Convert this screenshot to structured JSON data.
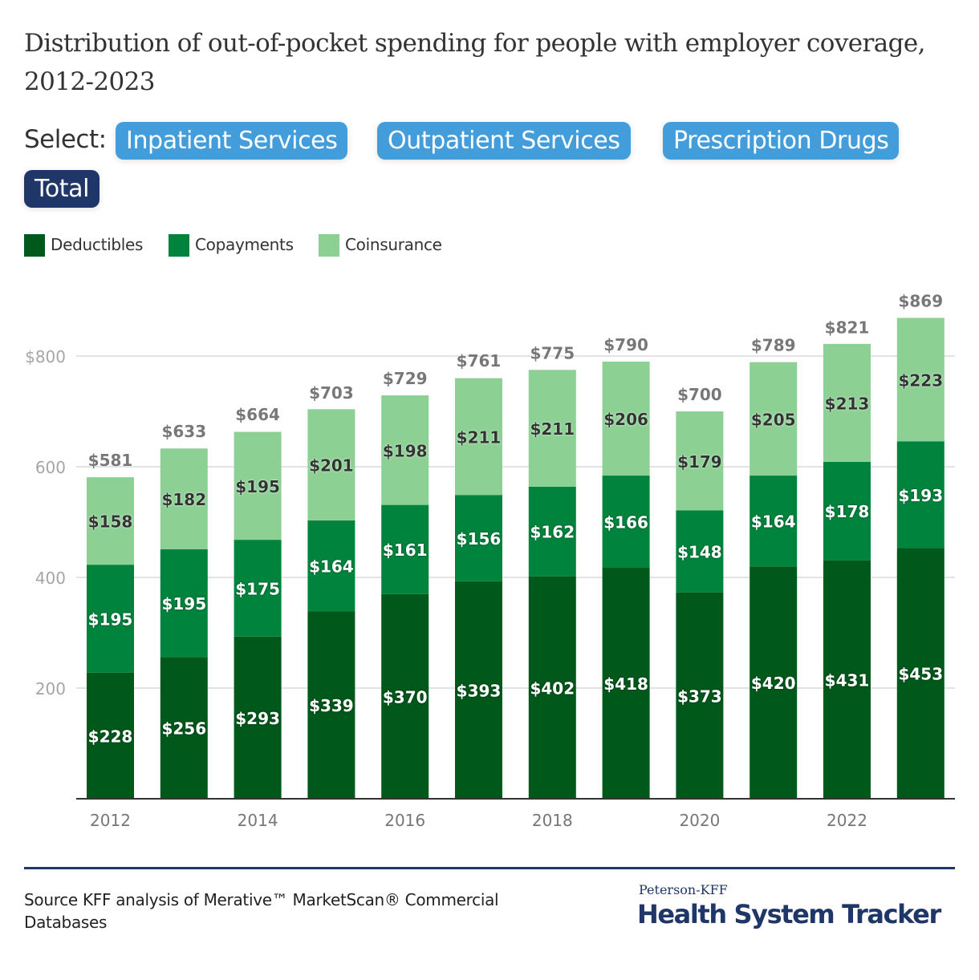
{
  "header": {
    "title": "Distribution of out-of-pocket spending for people with employer coverage, 2012-2023"
  },
  "selector": {
    "label": "Select:",
    "options": [
      {
        "label": "Inpatient Services",
        "active": false
      },
      {
        "label": "Outpatient Services",
        "active": false
      },
      {
        "label": "Prescription Drugs",
        "active": false
      },
      {
        "label": "Total",
        "active": true
      }
    ]
  },
  "colors": {
    "deductibles": "#00581a",
    "copayments": "#00843d",
    "coinsurance": "#8cd094",
    "button": "#439ddb",
    "button_active": "#1f3668",
    "brand": "#1f3668"
  },
  "chart_data": {
    "type": "bar",
    "stacked": true,
    "title": "Distribution of out-of-pocket spending for people with employer coverage, 2012-2023",
    "xlabel": "",
    "ylabel": "",
    "categories": [
      "2012",
      "2013",
      "2014",
      "2015",
      "2016",
      "2017",
      "2018",
      "2019",
      "2020",
      "2021",
      "2022",
      "2023"
    ],
    "x_tick_labels": [
      "2012",
      "",
      "2014",
      "",
      "2016",
      "",
      "2018",
      "",
      "2020",
      "",
      "2022",
      ""
    ],
    "series": [
      {
        "name": "Deductibles",
        "color": "#00581a",
        "values": [
          228,
          256,
          293,
          339,
          370,
          393,
          402,
          418,
          373,
          420,
          431,
          453
        ]
      },
      {
        "name": "Copayments",
        "color": "#00843d",
        "values": [
          195,
          195,
          175,
          164,
          161,
          156,
          162,
          166,
          148,
          164,
          178,
          193
        ]
      },
      {
        "name": "Coinsurance",
        "color": "#8cd094",
        "values": [
          158,
          182,
          195,
          201,
          198,
          211,
          211,
          206,
          179,
          205,
          213,
          223
        ]
      }
    ],
    "totals": [
      581,
      633,
      664,
      703,
      729,
      761,
      775,
      790,
      700,
      789,
      821,
      869
    ],
    "ylim": [
      0,
      869
    ],
    "y_ticks": [
      200,
      400,
      600,
      800
    ],
    "y_tick_labels": [
      "200",
      "400",
      "600",
      "$800"
    ],
    "value_prefix": "$",
    "grid": true,
    "legend": "top-left"
  },
  "footer": {
    "source": "Source KFF analysis of Merative™ MarketScan® Commercial Databases",
    "brand_top": "Peterson-KFF",
    "brand_main": "Health System Tracker"
  }
}
